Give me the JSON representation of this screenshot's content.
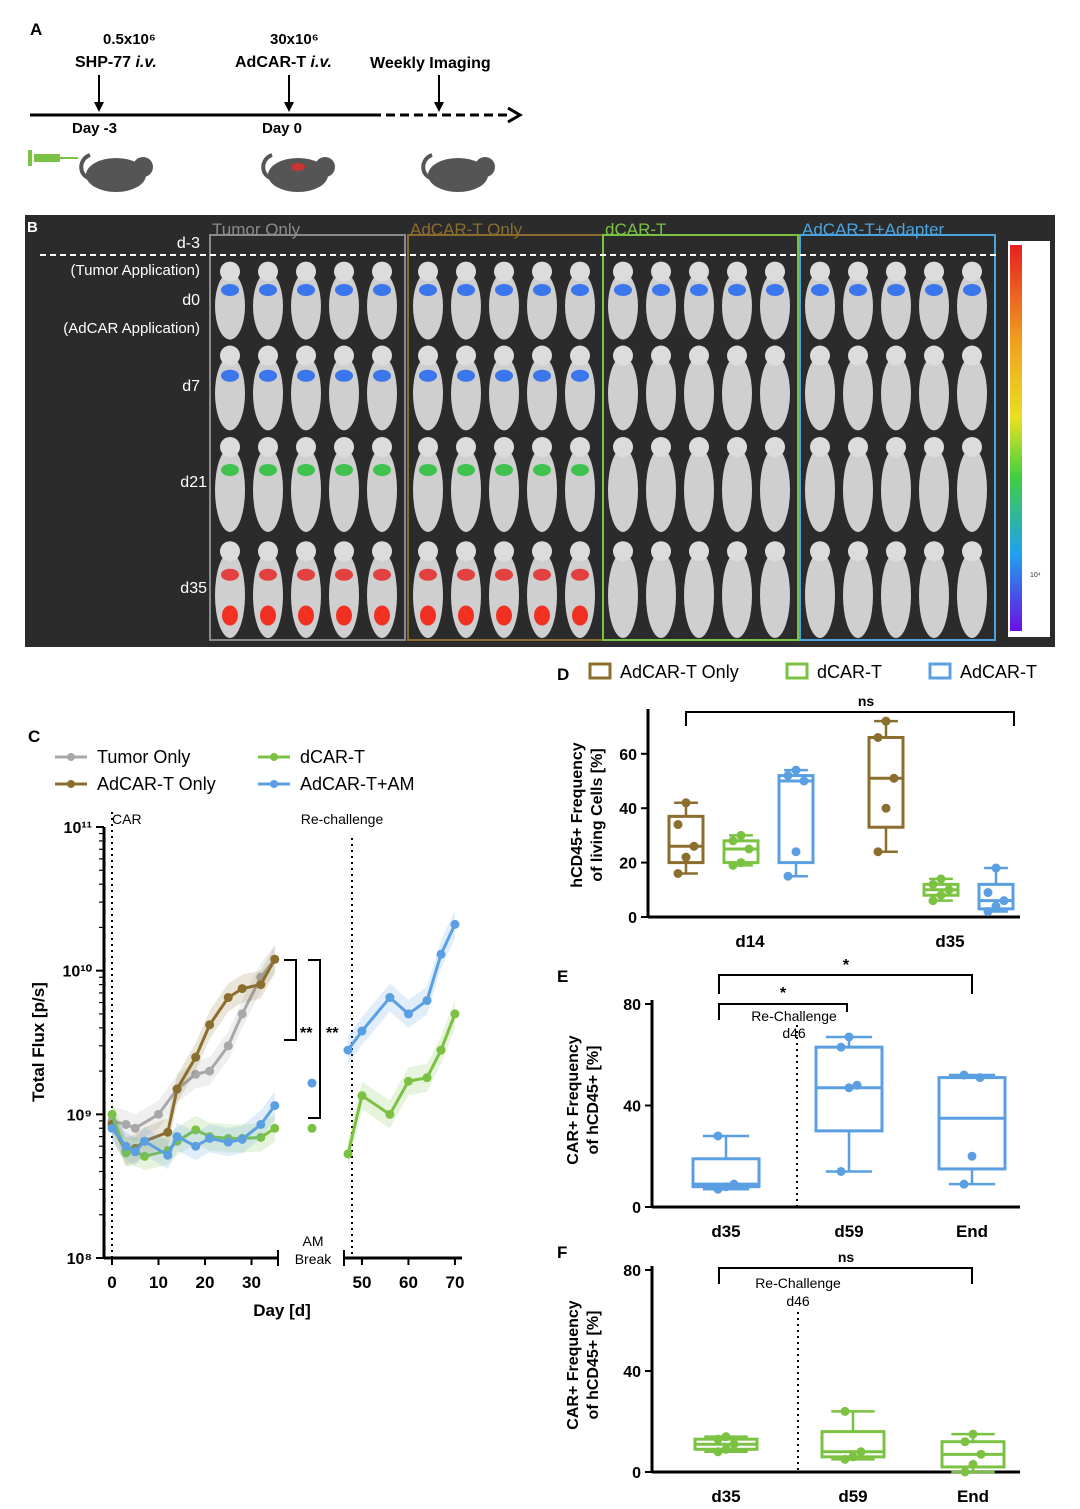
{
  "panel_a": {
    "letter": "A",
    "events": [
      {
        "amount": "0.5x10⁶",
        "agent": "SHP-77",
        "route": "i.v.",
        "day": "Day -3"
      },
      {
        "amount": "30x10⁶",
        "agent": "AdCAR-T",
        "route": "i.v.",
        "day": "Day 0"
      },
      {
        "label": "Weekly Imaging"
      }
    ]
  },
  "panel_b": {
    "letter": "B",
    "groups": [
      {
        "name": "Tumor Only",
        "color": "#8a8a8a"
      },
      {
        "name": "AdCAR-T Only",
        "color": "#8b6d2e"
      },
      {
        "name": "dCAR-T",
        "color": "#7cc242"
      },
      {
        "name": "AdCAR-T+Adapter",
        "color": "#4aa3df"
      }
    ],
    "rows": [
      {
        "label": "d-3",
        "sublabel": "(Tumor Application)"
      },
      {
        "label": "d0",
        "sublabel": "(AdCAR Application)"
      },
      {
        "label": "d7"
      },
      {
        "label": "d21"
      },
      {
        "label": "d35"
      }
    ],
    "scale_label": "10⁴"
  },
  "chart_data": [
    {
      "panel": "C",
      "type": "line",
      "ylabel": "Total Flux [p/s]",
      "xlabel": "Day [d]",
      "yscale": "log",
      "ylim": [
        100000000,
        100000000000
      ],
      "yticks": [
        "10⁸",
        "10⁹",
        "10¹⁰",
        "10¹¹"
      ],
      "xticks": [
        0,
        10,
        20,
        30,
        50,
        60,
        70
      ],
      "annotations": [
        "CAR",
        "Re-challenge",
        "AM",
        "Break",
        "**",
        "**"
      ],
      "series": [
        {
          "name": "Tumor Only",
          "color": "#a8a8a8",
          "x": [
            0,
            3,
            5,
            10,
            14,
            18,
            21,
            25,
            28,
            32,
            35
          ],
          "y": [
            900000000,
            850000000,
            800000000,
            1000000000,
            1500000000,
            1900000000,
            2000000000,
            3000000000,
            5000000000,
            9000000000,
            12000000000
          ]
        },
        {
          "name": "AdCAR-T Only",
          "color": "#8b6d2e",
          "x": [
            0,
            3,
            5,
            7,
            12,
            14,
            18,
            21,
            25,
            28,
            32,
            35
          ],
          "y": [
            850000000,
            550000000,
            580000000,
            650000000,
            750000000,
            1500000000,
            2500000000,
            4200000000,
            6500000000,
            7500000000,
            8000000000,
            12000000000
          ]
        },
        {
          "name": "dCAR-T",
          "color": "#7cc242",
          "x": [
            0,
            3,
            5,
            7,
            12,
            14,
            18,
            21,
            25,
            28,
            32,
            35,
            45,
            47,
            50,
            56,
            60,
            64,
            67,
            70
          ],
          "y": [
            1000000000,
            540000000,
            550000000,
            510000000,
            560000000,
            650000000,
            780000000,
            700000000,
            680000000,
            680000000,
            690000000,
            800000000,
            800000000,
            530000000,
            1350000000,
            1000000000,
            1700000000,
            1800000000,
            2800000000,
            5000000000
          ]
        },
        {
          "name": "AdCAR-T+AM",
          "color": "#5b9fe3",
          "x": [
            0,
            3,
            5,
            7,
            12,
            14,
            18,
            21,
            25,
            28,
            32,
            35,
            45,
            47,
            50,
            56,
            60,
            64,
            67,
            70
          ],
          "y": [
            800000000,
            600000000,
            550000000,
            650000000,
            520000000,
            700000000,
            600000000,
            680000000,
            640000000,
            670000000,
            850000000,
            1150000000,
            1650000000,
            2800000000,
            3800000000,
            6500000000,
            5000000000,
            6200000000,
            13000000000,
            21000000000
          ]
        }
      ]
    },
    {
      "panel": "D",
      "type": "box",
      "ylabel": "hCD45+ Frequency of living Cells [%]",
      "ylim": [
        0,
        75
      ],
      "yticks": [
        0,
        20,
        40,
        60
      ],
      "categories": [
        "d14",
        "d35"
      ],
      "legend": [
        "AdCAR-T Only",
        "dCAR-T",
        "AdCAR-T"
      ],
      "significance": [
        {
          "label": "ns"
        }
      ],
      "boxes": [
        {
          "category": "d14",
          "series": "AdCAR-T Only",
          "color": "#8b6d2e",
          "min": 16,
          "q1": 20,
          "median": 26,
          "q3": 37,
          "max": 42,
          "points": [
            16,
            22,
            26,
            34,
            42
          ]
        },
        {
          "category": "d14",
          "series": "dCAR-T",
          "color": "#7cc242",
          "min": 19,
          "q1": 20,
          "median": 25,
          "q3": 28,
          "max": 30,
          "points": [
            19,
            20,
            25,
            28,
            30
          ]
        },
        {
          "category": "d14",
          "series": "AdCAR-T",
          "color": "#5b9fe3",
          "min": 15,
          "q1": 20,
          "median": 50,
          "q3": 52,
          "max": 54,
          "points": [
            15,
            24,
            50,
            52,
            54
          ]
        },
        {
          "category": "d35",
          "series": "AdCAR-T Only",
          "color": "#8b6d2e",
          "min": 24,
          "q1": 33,
          "median": 51,
          "q3": 66,
          "max": 72,
          "points": [
            24,
            40,
            51,
            66,
            72
          ]
        },
        {
          "category": "d35",
          "series": "dCAR-T",
          "color": "#7cc242",
          "min": 6,
          "q1": 8,
          "median": 10,
          "q3": 12,
          "max": 14,
          "points": [
            6,
            8,
            10,
            12,
            14
          ]
        },
        {
          "category": "d35",
          "series": "AdCAR-T",
          "color": "#5b9fe3",
          "min": 2,
          "q1": 3,
          "median": 6,
          "q3": 12,
          "max": 18,
          "points": [
            2,
            4,
            6,
            9,
            18
          ]
        }
      ]
    },
    {
      "panel": "E",
      "type": "box",
      "ylabel": "CAR+ Frequency of hCD45+ [%]",
      "ylim": [
        0,
        80
      ],
      "yticks": [
        0,
        40,
        80
      ],
      "categories": [
        "d35",
        "d59",
        "End"
      ],
      "annotation": "Re-Challenge d46",
      "significance": [
        {
          "label": "*"
        },
        {
          "label": "*"
        }
      ],
      "boxes": [
        {
          "category": "d35",
          "color": "#5b9fe3",
          "min": 7,
          "q1": 8,
          "median": 9,
          "q3": 19,
          "max": 28,
          "points": [
            7,
            8,
            9,
            28
          ]
        },
        {
          "category": "d59",
          "color": "#5b9fe3",
          "min": 14,
          "q1": 30,
          "median": 47,
          "q3": 63,
          "max": 67,
          "points": [
            14,
            47,
            48,
            63,
            67
          ]
        },
        {
          "category": "End",
          "color": "#5b9fe3",
          "min": 9,
          "q1": 15,
          "median": 35,
          "q3": 51,
          "max": 52,
          "points": [
            9,
            20,
            51,
            52
          ]
        }
      ]
    },
    {
      "panel": "F",
      "type": "box",
      "ylabel": "CAR+ Frequency of hCD45+ [%]",
      "ylim": [
        0,
        80
      ],
      "yticks": [
        0,
        40,
        80
      ],
      "categories": [
        "d35",
        "d59",
        "End"
      ],
      "annotation": "Re-Challenge d46",
      "significance": [
        {
          "label": "ns"
        }
      ],
      "boxes": [
        {
          "category": "d35",
          "color": "#7cc242",
          "min": 8,
          "q1": 9,
          "median": 11,
          "q3": 13,
          "max": 14,
          "points": [
            8,
            9,
            11,
            13,
            14
          ]
        },
        {
          "category": "d59",
          "color": "#7cc242",
          "min": 5,
          "q1": 6,
          "median": 8,
          "q3": 16,
          "max": 24,
          "points": [
            5,
            6,
            8,
            24
          ]
        },
        {
          "category": "End",
          "color": "#7cc242",
          "min": 0,
          "q1": 2,
          "median": 7,
          "q3": 12,
          "max": 15,
          "points": [
            0,
            3,
            7,
            12,
            15
          ]
        }
      ]
    }
  ]
}
